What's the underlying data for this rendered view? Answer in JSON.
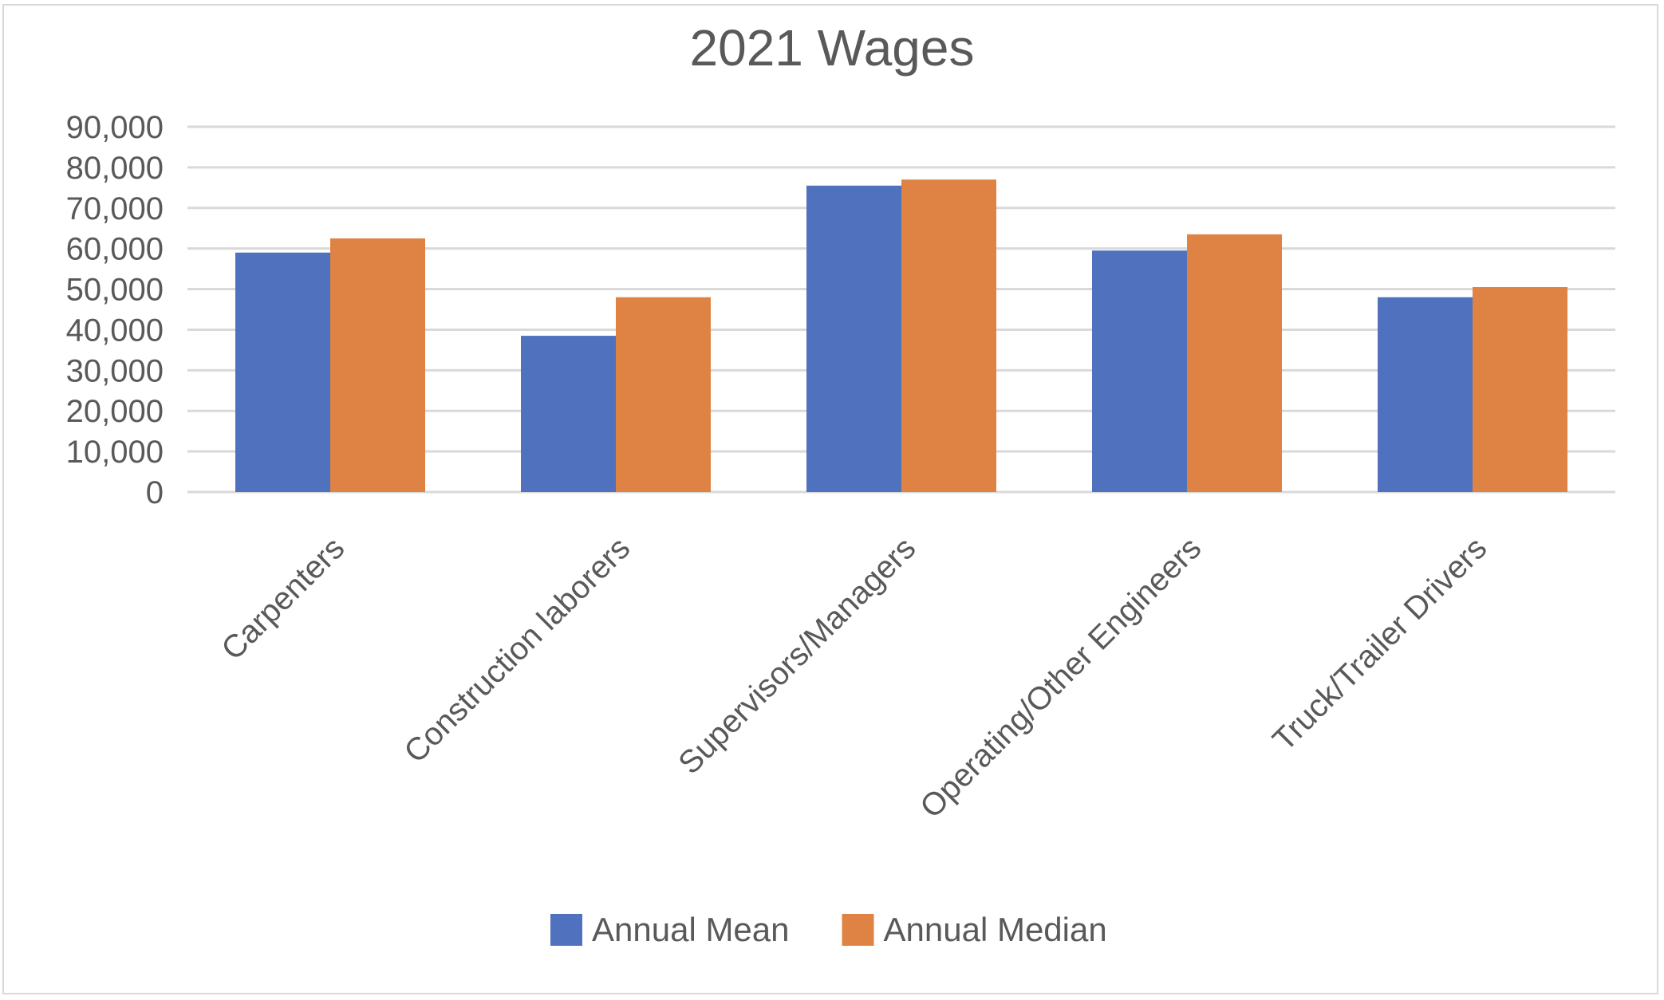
{
  "chart_data": {
    "type": "bar",
    "title": "2021 Wages",
    "categories": [
      "Carpenters",
      "Construction laborers",
      "Supervisors/Managers",
      "Operating/Other Engineers",
      "Truck/Trailer Drivers"
    ],
    "series": [
      {
        "name": "Annual Mean",
        "color": "#4f71be",
        "values": [
          59000,
          38500,
          75500,
          59500,
          48000
        ]
      },
      {
        "name": "Annual Median",
        "color": "#de8344",
        "values": [
          62500,
          48000,
          77000,
          63500,
          50500
        ]
      }
    ],
    "y_ticks": [
      "0",
      "10,000",
      "20,000",
      "30,000",
      "40,000",
      "50,000",
      "60,000",
      "70,000",
      "80,000",
      "90,000"
    ],
    "ylim": [
      0,
      90000
    ],
    "grid": true,
    "legend": "bottom"
  }
}
